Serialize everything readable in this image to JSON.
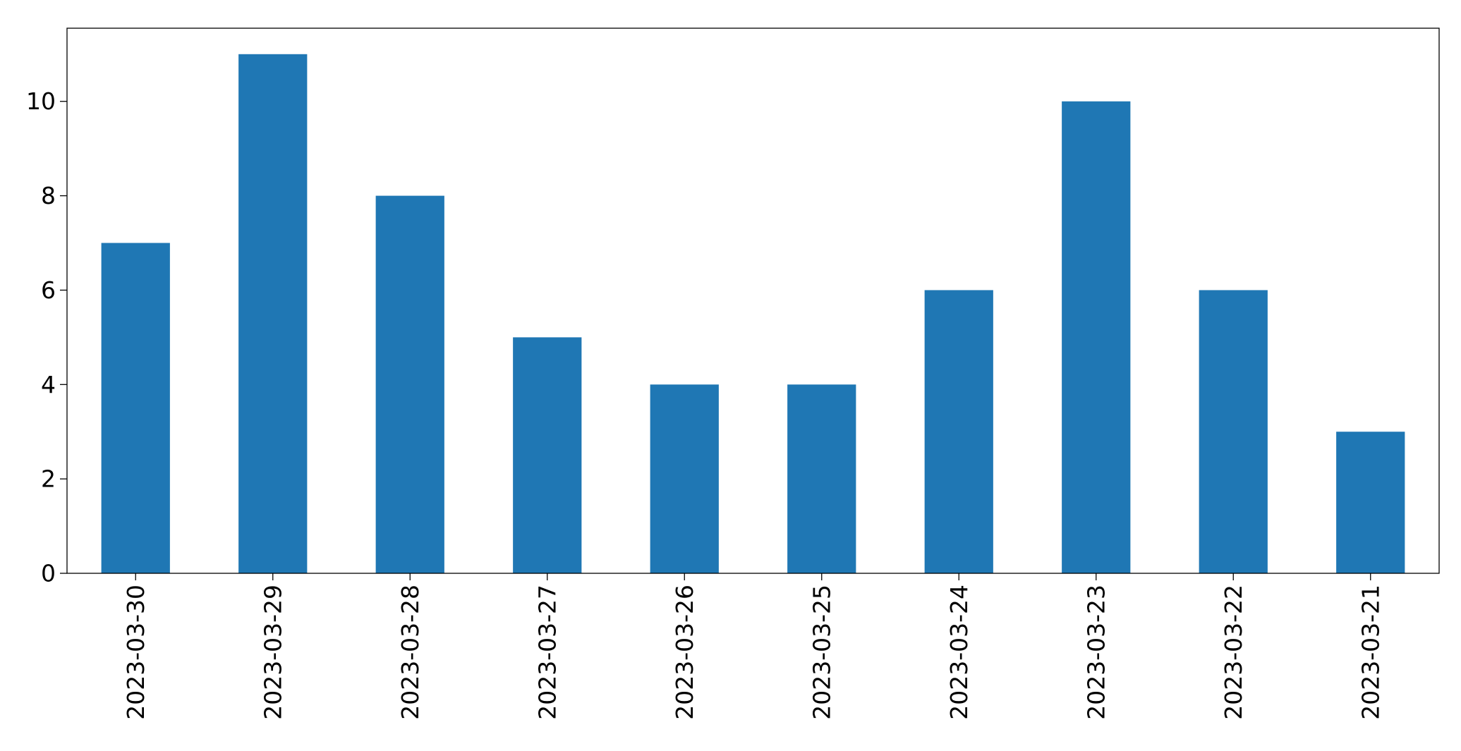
{
  "chart_data": {
    "type": "bar",
    "categories": [
      "2023-03-30",
      "2023-03-29",
      "2023-03-28",
      "2023-03-27",
      "2023-03-26",
      "2023-03-25",
      "2023-03-24",
      "2023-03-23",
      "2023-03-22",
      "2023-03-21"
    ],
    "values": [
      7,
      11,
      8,
      5,
      4,
      4,
      6,
      10,
      6,
      3
    ],
    "yticks": [
      "0",
      "2",
      "4",
      "6",
      "8",
      "10"
    ],
    "ylim": [
      0,
      11.55
    ],
    "title": "",
    "xlabel": "",
    "ylabel": "",
    "legend": "none",
    "grid": false,
    "colors": {
      "bar": "#1f77b4",
      "axis": "#000000",
      "background": "#ffffff"
    }
  }
}
